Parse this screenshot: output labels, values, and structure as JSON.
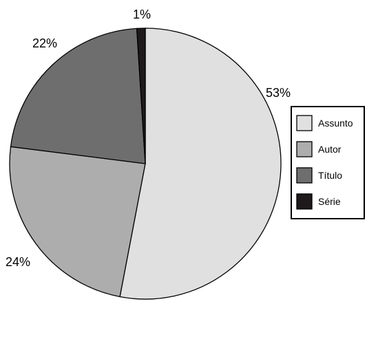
{
  "chart_data": {
    "type": "pie",
    "title": "",
    "start_angle_deg": 0,
    "direction": "clockwise",
    "slices": [
      {
        "label": "Assunto",
        "value": 53,
        "display": "53%",
        "color": "#e0e0e0"
      },
      {
        "label": "Autor",
        "value": 24,
        "display": "24%",
        "color": "#adadad"
      },
      {
        "label": "Título",
        "value": 22,
        "display": "22%",
        "color": "#6e6e6e"
      },
      {
        "label": "Série",
        "value": 1,
        "display": "1%",
        "color": "#1e1a1b"
      }
    ],
    "legend": {
      "position": "right",
      "entries": [
        "Assunto",
        "Autor",
        "Título",
        "Série"
      ]
    }
  }
}
